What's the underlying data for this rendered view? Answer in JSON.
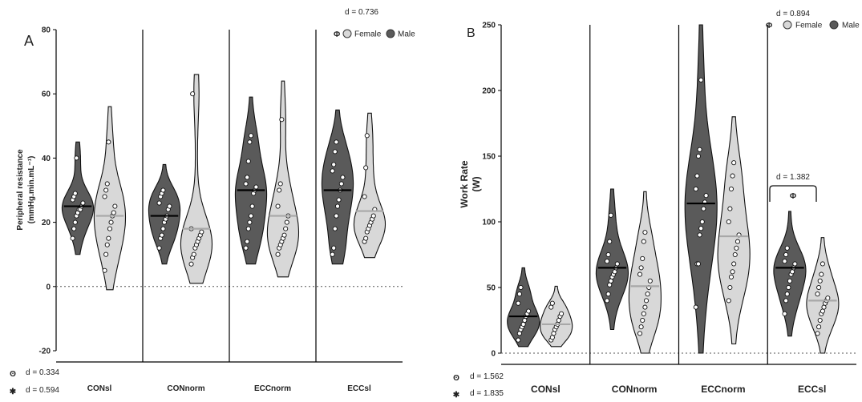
{
  "colors": {
    "male": "#5a5a5a",
    "female": "#d8d8d8",
    "male_median": "#000000",
    "female_median": "#a8a8a8"
  },
  "chart_data": [
    {
      "panel_label": "A",
      "type": "violin",
      "ylabel_lines": [
        "Peripheral resistance",
        "(mmHg.min.mL⁻¹)"
      ],
      "ylim": [
        -20,
        80
      ],
      "yticks": [
        -20,
        0,
        20,
        40,
        60,
        80
      ],
      "categories": [
        "CONsl",
        "CONnorm",
        "ECCnorm",
        "ECCsl"
      ],
      "legend": {
        "phi_note": "d = 0.736",
        "phi_symbol": "Φ",
        "female_label": "Female",
        "male_label": "Male"
      },
      "footnotes": [
        {
          "symbol": "ʘ",
          "text": "d = 0.334"
        },
        {
          "symbol": "✱",
          "text": "d = 0.594"
        }
      ],
      "series": [
        {
          "name": "Male",
          "range": [
            [
              10,
              45
            ],
            [
              7,
              38
            ],
            [
              7,
              59
            ],
            [
              7,
              55
            ]
          ],
          "median": [
            25,
            22,
            30,
            30
          ],
          "points": [
            [
              15,
              18,
              20,
              22,
              23,
              24,
              24,
              25,
              26,
              27,
              28,
              29,
              40
            ],
            [
              12,
              15,
              16,
              18,
              20,
              21,
              22,
              24,
              25,
              26,
              28,
              29,
              30
            ],
            [
              12,
              14,
              18,
              20,
              22,
              25,
              29,
              30,
              31,
              32,
              34,
              39,
              45,
              47
            ],
            [
              10,
              12,
              18,
              22,
              25,
              27,
              30,
              32,
              34,
              36,
              38,
              42,
              45
            ]
          ]
        },
        {
          "name": "Female",
          "range": [
            [
              -1,
              56
            ],
            [
              1,
              66
            ],
            [
              3,
              64
            ],
            [
              9,
              54
            ]
          ],
          "median": [
            22,
            18,
            22,
            23.5
          ],
          "points": [
            [
              5,
              10,
              13,
              15,
              18,
              20,
              22,
              23,
              25,
              28,
              30,
              32,
              45
            ],
            [
              7,
              9,
              10,
              12,
              13,
              14,
              15,
              16,
              17,
              18,
              60
            ],
            [
              10,
              12,
              13,
              14,
              15,
              16,
              18,
              20,
              22,
              25,
              30,
              32,
              52
            ],
            [
              14,
              15,
              17,
              18,
              19,
              20,
              21,
              22,
              24,
              28,
              37,
              47
            ]
          ]
        }
      ]
    },
    {
      "panel_label": "B",
      "type": "violin",
      "ylabel_lines": [
        "Work Rate",
        "(W)"
      ],
      "ylim": [
        0,
        250
      ],
      "yticks": [
        0,
        50,
        100,
        150,
        200,
        250
      ],
      "categories": [
        "CONsl",
        "CONnorm",
        "ECCnorm",
        "ECCsl"
      ],
      "legend": {
        "phi_note": "d = 0.894",
        "phi_symbol": "Φ",
        "female_label": "Female",
        "male_label": "Male"
      },
      "bracket": {
        "label": "d = 1.382",
        "symbol": "Φ",
        "category_index": 3
      },
      "footnotes": [
        {
          "symbol": "ʘ",
          "text": "d = 1.562"
        },
        {
          "symbol": "✱",
          "text": "d = 1.835"
        }
      ],
      "series": [
        {
          "name": "Male",
          "range": [
            [
              5,
              65
            ],
            [
              18,
              125
            ],
            [
              0,
              250
            ],
            [
              13,
              108
            ]
          ],
          "median": [
            28,
            65,
            114,
            65
          ],
          "points": [
            [
              10,
              15,
              18,
              20,
              22,
              25,
              28,
              30,
              32,
              38,
              45,
              50
            ],
            [
              40,
              45,
              52,
              55,
              58,
              60,
              62,
              65,
              68,
              70,
              75,
              85,
              105
            ],
            [
              35,
              68,
              68,
              90,
              95,
              100,
              110,
              115,
              120,
              125,
              135,
              150,
              155,
              208
            ],
            [
              30,
              40,
              45,
              50,
              55,
              60,
              62,
              65,
              68,
              70,
              75,
              80
            ]
          ]
        },
        {
          "name": "Female",
          "range": [
            [
              5,
              51
            ],
            [
              0,
              123
            ],
            [
              7,
              180
            ],
            [
              0,
              88
            ]
          ],
          "median": [
            22,
            51,
            89,
            40
          ],
          "points": [
            [
              10,
              12,
              15,
              18,
              20,
              22,
              25,
              28,
              30,
              35,
              38
            ],
            [
              15,
              20,
              25,
              30,
              35,
              40,
              45,
              50,
              55,
              60,
              65,
              72,
              85,
              92
            ],
            [
              40,
              50,
              58,
              62,
              68,
              75,
              80,
              85,
              90,
              100,
              110,
              125,
              135,
              145
            ],
            [
              15,
              20,
              25,
              30,
              32,
              35,
              38,
              40,
              42,
              45,
              50,
              55,
              60,
              68
            ]
          ]
        }
      ]
    }
  ]
}
